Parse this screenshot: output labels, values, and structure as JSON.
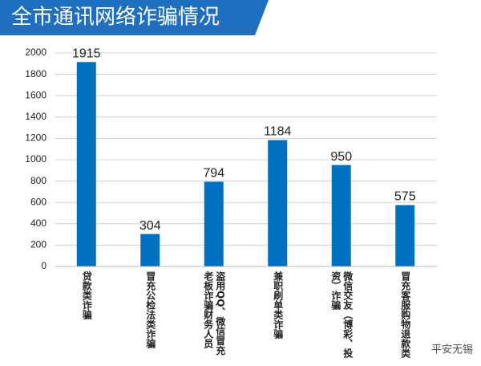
{
  "chart_data": {
    "type": "bar",
    "title": "全市通讯网络诈骗情况",
    "categories": [
      "贷款类诈骗",
      "冒充公检法类诈骗",
      "盗用QQ、微信冒充老板诈骗财务人员",
      "兼职刷单类诈骗",
      "微信交友（博彩、投资）诈骗",
      "冒充客服购物退款类"
    ],
    "values": [
      1915,
      304,
      794,
      1184,
      950,
      575
    ],
    "color": "#0070c0",
    "ylim": [
      0,
      2000
    ],
    "yticks": [
      0,
      200,
      400,
      600,
      800,
      1000,
      1200,
      1400,
      1600,
      1800,
      2000
    ],
    "grid": true,
    "watermark": "平安无锡"
  }
}
